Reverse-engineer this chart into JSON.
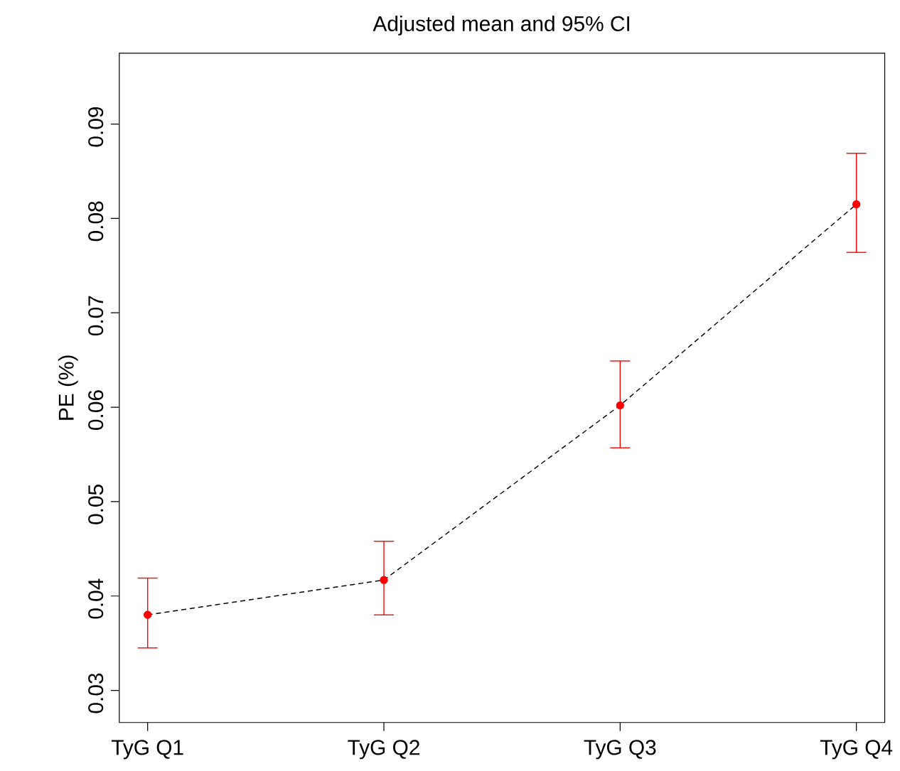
{
  "chart_data": {
    "type": "line",
    "title": "Adjusted mean and 95% CI",
    "ylabel": "PE (%)",
    "categories": [
      "TyG Q1",
      "TyG Q2",
      "TyG Q3",
      "TyG Q4"
    ],
    "series": [
      {
        "color": "#000000",
        "line_style": "dashed",
        "marker": "none",
        "values": [
          0.038,
          0.0417,
          0.0602,
          0.0815
        ]
      },
      {
        "type": "scatter",
        "color": "#ff0000",
        "marker": "circle",
        "values": [
          0.038,
          0.0417,
          0.0602,
          0.0815
        ],
        "errors": [
          [
            0.0345,
            0.0419
          ],
          [
            0.038,
            0.0458
          ],
          [
            0.0557,
            0.0649
          ],
          [
            0.0764,
            0.0869
          ]
        ]
      }
    ],
    "ylim": [
      0.0266,
      0.0975
    ],
    "yticks": [
      0.03,
      0.04,
      0.05,
      0.06,
      0.07,
      0.08,
      0.09
    ],
    "grid": false
  }
}
